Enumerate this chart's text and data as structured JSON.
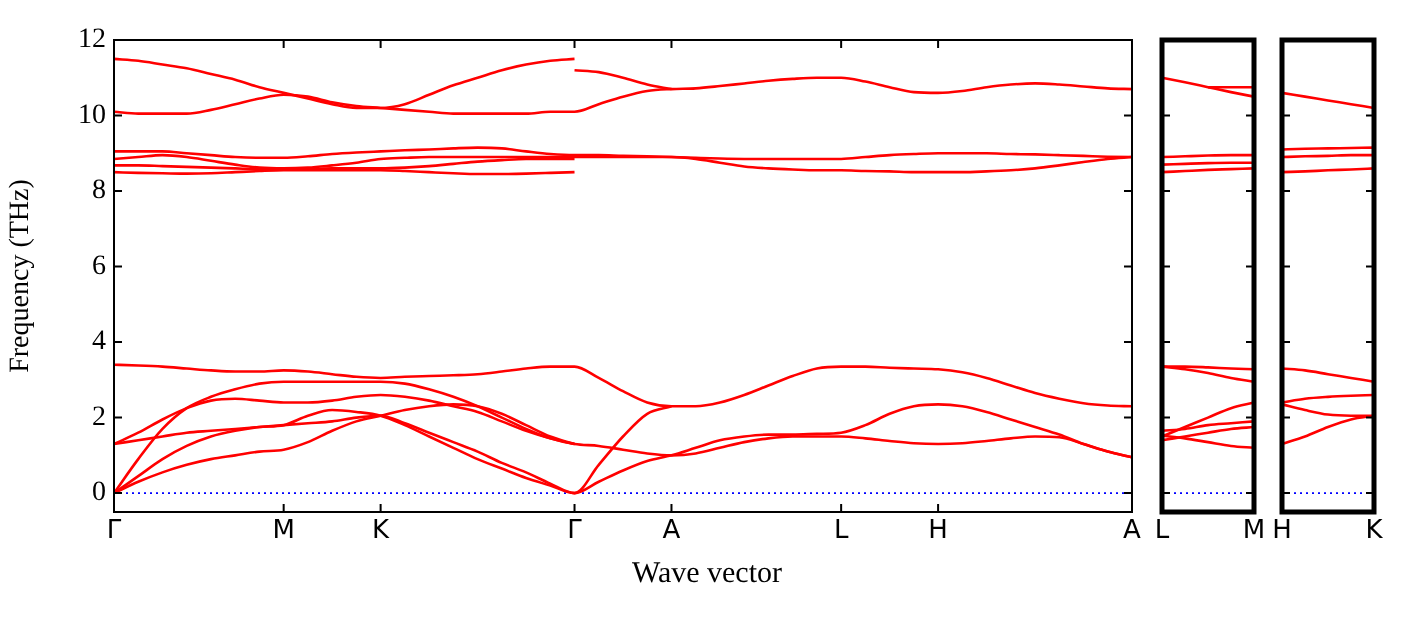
{
  "chart_data": [
    {
      "type": "line",
      "ylabel": "Frequency (THz)",
      "xlabel": "Wave vector",
      "categories": [
        "Γ",
        null,
        null,
        null,
        null,
        null,
        null,
        "M",
        null,
        null,
        null,
        "K",
        null,
        null,
        null,
        null,
        null,
        null,
        null,
        "Γ",
        null,
        null,
        null,
        "A",
        null,
        null,
        null,
        null,
        null,
        null,
        "L",
        null,
        null,
        null,
        "H",
        null,
        null,
        null,
        null,
        null,
        null,
        null,
        "A"
      ],
      "ylim": [
        -0.5,
        12
      ],
      "yticks": [
        0,
        2,
        4,
        6,
        8,
        10,
        12
      ],
      "grid": false,
      "legend": false,
      "ref_lines": [
        {
          "axis": "y",
          "value": 0,
          "color": "#0000ff",
          "line_style": "dotted"
        }
      ],
      "series": [
        {
          "color": "#ff0000",
          "values": [
            11.5,
            11.45,
            11.35,
            11.25,
            11.1,
            10.95,
            10.75,
            10.6,
            10.45,
            10.3,
            10.2,
            10.2,
            10.3,
            10.55,
            10.8,
            11.0,
            11.2,
            11.35,
            11.45,
            11.5,
            null,
            null,
            null,
            null,
            null,
            null,
            null,
            null,
            null,
            null,
            null,
            null,
            null,
            null,
            null,
            null,
            null,
            null,
            null,
            null,
            null,
            null,
            null
          ]
        },
        {
          "color": "#ff0000",
          "values": [
            10.1,
            10.05,
            10.05,
            10.05,
            10.15,
            10.3,
            10.45,
            10.55,
            10.5,
            10.35,
            10.25,
            10.2,
            10.15,
            10.1,
            10.05,
            10.05,
            10.05,
            10.05,
            10.1,
            10.1,
            10.3,
            10.5,
            10.65,
            10.7,
            10.72,
            10.78,
            10.85,
            10.92,
            10.97,
            11.0,
            11.0,
            10.9,
            10.75,
            10.62,
            10.6,
            10.65,
            10.75,
            10.82,
            10.85,
            10.82,
            10.77,
            10.72,
            10.7
          ]
        },
        {
          "color": "#ff0000",
          "values": [
            null,
            null,
            null,
            null,
            null,
            null,
            null,
            null,
            null,
            null,
            null,
            null,
            null,
            null,
            null,
            null,
            null,
            null,
            null,
            11.2,
            11.15,
            11.0,
            10.82,
            10.7,
            null,
            null,
            null,
            null,
            null,
            null,
            null,
            null,
            null,
            null,
            null,
            null,
            null,
            null,
            null,
            null,
            null,
            null,
            null
          ]
        },
        {
          "color": "#ff0000",
          "values": [
            9.05,
            9.05,
            9.05,
            9.0,
            8.95,
            8.9,
            8.88,
            8.88,
            8.92,
            8.98,
            9.02,
            9.05,
            9.08,
            9.1,
            9.13,
            9.15,
            9.13,
            9.05,
            8.98,
            8.95,
            8.95,
            8.93,
            8.92,
            8.9,
            8.88,
            8.86,
            8.85,
            8.85,
            8.85,
            8.85,
            8.85,
            8.9,
            8.95,
            8.98,
            9.0,
            9.0,
            9.0,
            8.98,
            8.97,
            8.95,
            8.93,
            8.91,
            8.9
          ]
        },
        {
          "color": "#ff0000",
          "values": [
            8.85,
            8.9,
            8.95,
            8.9,
            8.8,
            8.7,
            8.62,
            8.6,
            8.62,
            8.68,
            8.75,
            8.85,
            8.88,
            8.9,
            8.9,
            8.9,
            8.9,
            8.9,
            8.9,
            8.9,
            8.9,
            8.9,
            8.9,
            8.9,
            8.85,
            8.75,
            8.65,
            8.6,
            8.57,
            8.55,
            8.55,
            8.53,
            8.52,
            8.5,
            8.5,
            8.5,
            8.52,
            8.55,
            8.6,
            8.68,
            8.77,
            8.85,
            8.9
          ]
        },
        {
          "color": "#ff0000",
          "values": [
            8.68,
            8.68,
            8.66,
            8.64,
            8.62,
            8.6,
            8.58,
            8.58,
            8.58,
            8.6,
            8.6,
            8.6,
            8.62,
            8.66,
            8.72,
            8.78,
            8.82,
            8.85,
            8.85,
            8.85,
            null,
            null,
            null,
            null,
            null,
            null,
            null,
            null,
            null,
            null,
            null,
            null,
            null,
            null,
            null,
            null,
            null,
            null,
            null,
            null,
            null,
            null,
            null
          ]
        },
        {
          "color": "#ff0000",
          "values": [
            8.5,
            8.48,
            8.47,
            8.46,
            8.47,
            8.5,
            8.53,
            8.55,
            8.55,
            8.55,
            8.55,
            8.55,
            8.53,
            8.5,
            8.47,
            8.45,
            8.45,
            8.46,
            8.48,
            8.5,
            null,
            null,
            null,
            null,
            null,
            null,
            null,
            null,
            null,
            null,
            null,
            null,
            null,
            null,
            null,
            null,
            null,
            null,
            null,
            null,
            null,
            null,
            null
          ]
        },
        {
          "color": "#ff0000",
          "values": [
            3.4,
            3.38,
            3.35,
            3.3,
            3.25,
            3.22,
            3.22,
            3.25,
            3.22,
            3.15,
            3.08,
            3.05,
            3.08,
            3.1,
            3.12,
            3.15,
            3.22,
            3.3,
            3.35,
            3.35,
            3.05,
            2.7,
            2.4,
            2.3,
            2.3,
            2.4,
            2.6,
            2.85,
            3.1,
            3.3,
            3.35,
            3.35,
            3.32,
            3.3,
            3.28,
            3.2,
            3.05,
            2.85,
            2.65,
            2.5,
            2.38,
            2.32,
            2.3
          ]
        },
        {
          "color": "#ff0000",
          "values": [
            0,
            0.45,
            0.9,
            1.25,
            1.5,
            1.65,
            1.75,
            1.8,
            2.05,
            2.2,
            2.15,
            2.05,
            1.8,
            1.5,
            1.2,
            0.9,
            0.65,
            0.4,
            0.2,
            0,
            0.75,
            1.5,
            2.1,
            2.3,
            null,
            null,
            null,
            null,
            null,
            null,
            null,
            null,
            null,
            null,
            null,
            null,
            null,
            null,
            null,
            null,
            null,
            null,
            null
          ]
        },
        {
          "color": "#ff0000",
          "values": [
            0,
            0.9,
            1.7,
            2.25,
            2.55,
            2.75,
            2.9,
            2.95,
            2.95,
            2.95,
            2.95,
            2.95,
            2.9,
            2.75,
            2.55,
            2.3,
            2.0,
            1.7,
            1.45,
            1.3,
            1.25,
            1.15,
            1.05,
            1.0,
            1.05,
            1.2,
            1.35,
            1.45,
            1.5,
            1.5,
            1.5,
            1.45,
            1.38,
            1.32,
            1.3,
            1.32,
            1.38,
            1.45,
            1.5,
            1.48,
            1.3,
            1.1,
            0.95
          ]
        },
        {
          "color": "#ff0000",
          "values": [
            1.3,
            1.4,
            1.5,
            1.6,
            1.65,
            1.7,
            1.75,
            1.8,
            1.85,
            1.9,
            2.0,
            2.05,
            1.85,
            1.6,
            1.35,
            1.1,
            0.8,
            0.55,
            0.25,
            0,
            0.3,
            0.6,
            0.85,
            1.0,
            1.2,
            1.4,
            1.5,
            1.55,
            1.55,
            1.57,
            1.6,
            1.8,
            2.1,
            2.3,
            2.35,
            2.3,
            2.15,
            1.95,
            1.75,
            1.55,
            1.3,
            1.1,
            0.95
          ]
        },
        {
          "color": "#ff0000",
          "values": [
            1.3,
            1.6,
            1.95,
            2.25,
            2.45,
            2.5,
            2.45,
            2.4,
            2.4,
            2.45,
            2.55,
            2.6,
            2.55,
            2.45,
            2.3,
            2.15,
            1.9,
            1.65,
            1.45,
            1.3,
            null,
            null,
            null,
            null,
            null,
            null,
            null,
            null,
            null,
            null,
            null,
            null,
            null,
            null,
            null,
            null,
            null,
            null,
            null,
            null,
            null,
            null,
            null
          ]
        },
        {
          "color": "#ff0000",
          "values": [
            0,
            0.3,
            0.55,
            0.75,
            0.9,
            1.0,
            1.1,
            1.15,
            1.35,
            1.65,
            1.9,
            2.05,
            2.2,
            2.3,
            2.35,
            2.3,
            2.1,
            1.8,
            1.5,
            1.3,
            null,
            null,
            null,
            null,
            null,
            null,
            null,
            null,
            null,
            null,
            null,
            null,
            null,
            null,
            null,
            null,
            null,
            null,
            null,
            null,
            null,
            null,
            null
          ]
        }
      ]
    },
    {
      "type": "line",
      "categories": [
        "L",
        null,
        null,
        null,
        "M"
      ],
      "ylim": [
        -0.5,
        12
      ],
      "yticks": [
        0,
        2,
        4,
        6,
        8,
        10,
        12
      ],
      "tick_labels": "x",
      "grid": false,
      "legend": false,
      "ref_lines": [
        {
          "axis": "y",
          "value": 0,
          "color": "#0000ff",
          "line_style": "dotted"
        }
      ],
      "series": [
        {
          "color": "#ff0000",
          "values": [
            11.0,
            10.88,
            10.75,
            10.62,
            10.5
          ]
        },
        {
          "color": "#ff0000",
          "values": [
            null,
            null,
            10.75,
            10.75,
            10.75
          ]
        },
        {
          "color": "#ff0000",
          "values": [
            8.9,
            8.92,
            8.94,
            8.95,
            8.95
          ]
        },
        {
          "color": "#ff0000",
          "values": [
            8.7,
            8.72,
            8.74,
            8.75,
            8.75
          ]
        },
        {
          "color": "#ff0000",
          "values": [
            8.5,
            8.53,
            8.56,
            8.58,
            8.6
          ]
        },
        {
          "color": "#ff0000",
          "values": [
            3.35,
            3.35,
            3.33,
            3.3,
            3.28
          ]
        },
        {
          "color": "#ff0000",
          "values": [
            3.35,
            3.28,
            3.18,
            3.05,
            2.95
          ]
        },
        {
          "color": "#ff0000",
          "values": [
            1.5,
            1.75,
            2.0,
            2.25,
            2.4
          ]
        },
        {
          "color": "#ff0000",
          "values": [
            1.65,
            1.7,
            1.8,
            1.85,
            1.9
          ]
        },
        {
          "color": "#ff0000",
          "values": [
            1.4,
            1.5,
            1.6,
            1.7,
            1.75
          ]
        },
        {
          "color": "#ff0000",
          "values": [
            1.52,
            1.45,
            1.35,
            1.25,
            1.2
          ]
        }
      ]
    },
    {
      "type": "line",
      "categories": [
        "H",
        null,
        null,
        null,
        "K"
      ],
      "ylim": [
        -0.5,
        12
      ],
      "yticks": [
        0,
        2,
        4,
        6,
        8,
        10,
        12
      ],
      "tick_labels": "x",
      "grid": false,
      "legend": false,
      "ref_lines": [
        {
          "axis": "y",
          "value": 0,
          "color": "#0000ff",
          "line_style": "dotted"
        }
      ],
      "series": [
        {
          "color": "#ff0000",
          "values": [
            10.6,
            10.5,
            10.4,
            10.3,
            10.2
          ]
        },
        {
          "color": "#ff0000",
          "values": [
            9.1,
            9.12,
            9.13,
            9.14,
            9.15
          ]
        },
        {
          "color": "#ff0000",
          "values": [
            8.9,
            8.92,
            8.93,
            8.95,
            8.95
          ]
        },
        {
          "color": "#ff0000",
          "values": [
            8.5,
            8.52,
            8.55,
            8.57,
            8.6
          ]
        },
        {
          "color": "#ff0000",
          "values": [
            3.3,
            3.25,
            3.15,
            3.05,
            2.95
          ]
        },
        {
          "color": "#ff0000",
          "values": [
            2.4,
            2.5,
            2.55,
            2.58,
            2.6
          ]
        },
        {
          "color": "#ff0000",
          "values": [
            2.35,
            2.2,
            2.08,
            2.05,
            2.05
          ]
        },
        {
          "color": "#ff0000",
          "values": [
            1.3,
            1.5,
            1.75,
            1.95,
            2.05
          ]
        }
      ]
    }
  ]
}
